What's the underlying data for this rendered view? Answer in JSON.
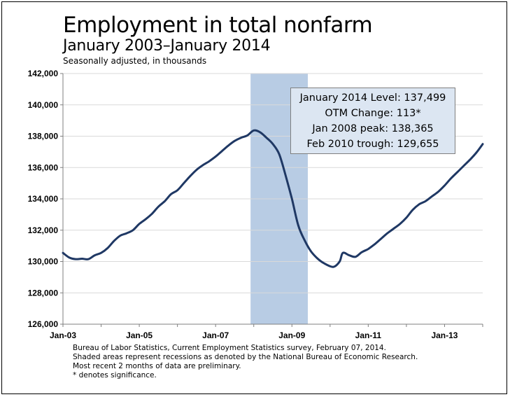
{
  "title": "Employment in total nonfarm",
  "subtitle": "January 2003–January 2014",
  "units_note": "Seasonally adjusted, in thousands",
  "infobox": [
    "January 2014 Level: 137,499",
    "OTM Change: 113*",
    "Jan 2008 peak: 138,365",
    "Feb 2010 trough: 129,655"
  ],
  "footnotes": [
    "Bureau of Labor Statistics, Current Employment Statistics survey, February 07, 2014.",
    "Shaded areas represent recessions as denoted by the National Bureau of Economic Research.",
    "Most recent 2 months of data are preliminary.",
    "* denotes significance."
  ],
  "colors": {
    "line": "#1f3864",
    "recession": "#b8cce4",
    "gridline": "#d9d9d9",
    "infobox_bg": "#dce6f2"
  },
  "chart_data": {
    "type": "line",
    "title": "Employment in total nonfarm",
    "subtitle": "January 2003–January 2014",
    "ylabel": "",
    "xlabel": "",
    "ylim": [
      126000,
      142000
    ],
    "xlim": [
      "2003-01",
      "2014-01"
    ],
    "y_ticks": [
      126000,
      128000,
      130000,
      132000,
      134000,
      136000,
      138000,
      140000,
      142000
    ],
    "y_tick_labels": [
      "126,000",
      "128,000",
      "130,000",
      "132,000",
      "134,000",
      "136,000",
      "138,000",
      "140,000",
      "142,000"
    ],
    "x_tick_labels": [
      "Jan-03",
      "Jan-05",
      "Jan-07",
      "Jan-09",
      "Jan-11",
      "Jan-13"
    ],
    "x_tick_dates": [
      "2003-01",
      "2005-01",
      "2007-01",
      "2009-01",
      "2011-01",
      "2013-01"
    ],
    "grid": "horizontal",
    "recession": {
      "start": "2007-12",
      "end": "2009-06"
    },
    "series": [
      {
        "points": [
          [
            "2003-01",
            130550
          ],
          [
            "2003-03",
            130250
          ],
          [
            "2003-05",
            130150
          ],
          [
            "2003-07",
            130180
          ],
          [
            "2003-09",
            130150
          ],
          [
            "2003-11",
            130400
          ],
          [
            "2004-01",
            130550
          ],
          [
            "2004-03",
            130850
          ],
          [
            "2004-05",
            131300
          ],
          [
            "2004-07",
            131650
          ],
          [
            "2004-09",
            131800
          ],
          [
            "2004-11",
            132000
          ],
          [
            "2005-01",
            132400
          ],
          [
            "2005-03",
            132700
          ],
          [
            "2005-05",
            133050
          ],
          [
            "2005-07",
            133500
          ],
          [
            "2005-09",
            133850
          ],
          [
            "2005-11",
            134300
          ],
          [
            "2006-01",
            134550
          ],
          [
            "2006-03",
            135000
          ],
          [
            "2006-05",
            135450
          ],
          [
            "2006-07",
            135850
          ],
          [
            "2006-09",
            136150
          ],
          [
            "2006-11",
            136400
          ],
          [
            "2007-01",
            136700
          ],
          [
            "2007-03",
            137050
          ],
          [
            "2007-05",
            137400
          ],
          [
            "2007-07",
            137700
          ],
          [
            "2007-09",
            137900
          ],
          [
            "2007-11",
            138050
          ],
          [
            "2008-01",
            138365
          ],
          [
            "2008-03",
            138250
          ],
          [
            "2008-05",
            137900
          ],
          [
            "2008-07",
            137500
          ],
          [
            "2008-09",
            136850
          ],
          [
            "2008-11",
            135500
          ],
          [
            "2009-01",
            134000
          ],
          [
            "2009-03",
            132300
          ],
          [
            "2009-05",
            131350
          ],
          [
            "2009-07",
            130650
          ],
          [
            "2009-09",
            130200
          ],
          [
            "2009-11",
            129900
          ],
          [
            "2010-02",
            129655
          ],
          [
            "2010-04",
            130000
          ],
          [
            "2010-05",
            130550
          ],
          [
            "2010-07",
            130400
          ],
          [
            "2010-09",
            130300
          ],
          [
            "2010-11",
            130600
          ],
          [
            "2011-01",
            130800
          ],
          [
            "2011-03",
            131100
          ],
          [
            "2011-05",
            131450
          ],
          [
            "2011-07",
            131800
          ],
          [
            "2011-09",
            132100
          ],
          [
            "2011-11",
            132400
          ],
          [
            "2012-01",
            132800
          ],
          [
            "2012-03",
            133300
          ],
          [
            "2012-05",
            133650
          ],
          [
            "2012-07",
            133850
          ],
          [
            "2012-09",
            134150
          ],
          [
            "2012-11",
            134450
          ],
          [
            "2013-01",
            134850
          ],
          [
            "2013-03",
            135300
          ],
          [
            "2013-05",
            135700
          ],
          [
            "2013-07",
            136100
          ],
          [
            "2013-09",
            136500
          ],
          [
            "2013-11",
            136950
          ],
          [
            "2014-01",
            137499
          ]
        ]
      }
    ]
  }
}
